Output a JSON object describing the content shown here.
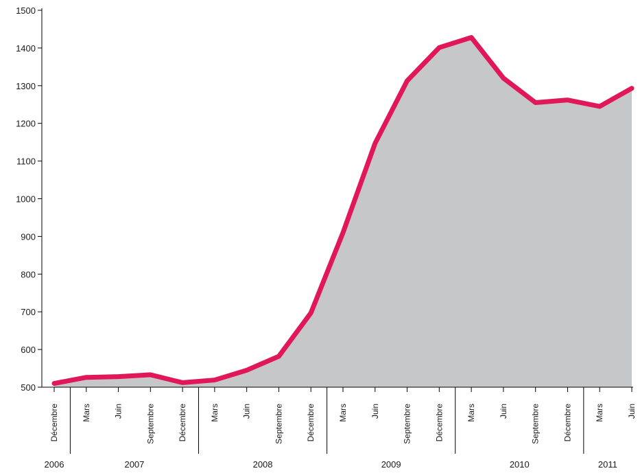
{
  "chart_data": {
    "type": "area",
    "title": "",
    "xlabel": "",
    "ylabel": "",
    "ylim": [
      500,
      1500
    ],
    "yticks": [
      500,
      600,
      700,
      800,
      900,
      1000,
      1100,
      1200,
      1300,
      1400,
      1500
    ],
    "grid": false,
    "legend": "none",
    "colors": {
      "line": "#e0185a",
      "area": "#c6c7c9",
      "axis": "#000000"
    },
    "x": [
      {
        "year": "2006",
        "month": "Décembre"
      },
      {
        "year": "2007",
        "month": "Mars"
      },
      {
        "year": "2007",
        "month": "Juin"
      },
      {
        "year": "2007",
        "month": "Septembre"
      },
      {
        "year": "2007",
        "month": "Décembre"
      },
      {
        "year": "2008",
        "month": "Mars"
      },
      {
        "year": "2008",
        "month": "Juin"
      },
      {
        "year": "2008",
        "month": "Septembre"
      },
      {
        "year": "2008",
        "month": "Décembre"
      },
      {
        "year": "2009",
        "month": "Mars"
      },
      {
        "year": "2009",
        "month": "Juin"
      },
      {
        "year": "2009",
        "month": "Septembre"
      },
      {
        "year": "2009",
        "month": "Décembre"
      },
      {
        "year": "2010",
        "month": "Mars"
      },
      {
        "year": "2010",
        "month": "Juin"
      },
      {
        "year": "2010",
        "month": "Septembre"
      },
      {
        "year": "2010",
        "month": "Décembre"
      },
      {
        "year": "2011",
        "month": "Mars"
      },
      {
        "year": "2011",
        "month": "Juin"
      }
    ],
    "years": [
      "2006",
      "2007",
      "2008",
      "2009",
      "2010",
      "2011"
    ],
    "series": [
      {
        "values": [
          510,
          526,
          528,
          533,
          512,
          519,
          545,
          582,
          697,
          910,
          1147,
          1313,
          1401,
          1428,
          1320,
          1255,
          1262,
          1245,
          1293
        ]
      }
    ]
  }
}
